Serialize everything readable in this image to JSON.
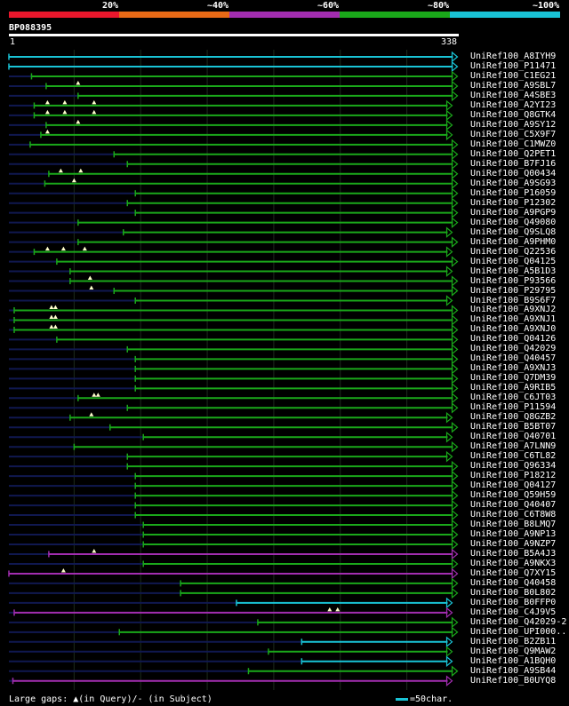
{
  "legend": {
    "segments": [
      {
        "label": "20%",
        "color": "#e8172c"
      },
      {
        "label": "~40%",
        "color": "#e86a16"
      },
      {
        "label": "~60%",
        "color": "#a22db0"
      },
      {
        "label": "~80%",
        "color": "#1aa81a"
      },
      {
        "label": "~100%",
        "color": "#19c3d6"
      }
    ]
  },
  "query": {
    "id": "BP088395",
    "start_label": "1",
    "end_label": "338"
  },
  "chart_data": {
    "type": "alignment-overview",
    "query_length": 338,
    "colors": {
      "green": "#1aa81a",
      "cyan": "#19c3d6",
      "purple": "#a22db0",
      "faint": "#101850",
      "gap": "#ffffcc"
    },
    "hits": [
      {
        "name": "UniRef100_A8IYH9",
        "start": 1,
        "end": 338,
        "color": "cyan",
        "gaps": []
      },
      {
        "name": "UniRef100_P11471",
        "start": 1,
        "end": 338,
        "color": "cyan",
        "gaps": []
      },
      {
        "name": "UniRef100_C1EG21",
        "start": 18,
        "end": 338,
        "color": "green",
        "gaps": []
      },
      {
        "name": "UniRef100_A9SBL7",
        "start": 29,
        "end": 338,
        "color": "green",
        "gaps": [
          53
        ]
      },
      {
        "name": "UniRef100_A4SBE3",
        "start": 53,
        "end": 338,
        "color": "green",
        "gaps": []
      },
      {
        "name": "UniRef100_A2YI23",
        "start": 20,
        "end": 334,
        "color": "green",
        "gaps": [
          30,
          43,
          65
        ]
      },
      {
        "name": "UniRef100_Q8GTK4",
        "start": 20,
        "end": 334,
        "color": "green",
        "gaps": [
          30,
          43,
          65
        ]
      },
      {
        "name": "UniRef100_A9SY12",
        "start": 29,
        "end": 334,
        "color": "green",
        "gaps": [
          53
        ]
      },
      {
        "name": "UniRef100_C5X9F7",
        "start": 25,
        "end": 334,
        "color": "green",
        "gaps": [
          30
        ]
      },
      {
        "name": "UniRef100_C1MWZ0",
        "start": 17,
        "end": 338,
        "color": "green",
        "gaps": []
      },
      {
        "name": "UniRef100_Q2PET1",
        "start": 80,
        "end": 338,
        "color": "green",
        "gaps": []
      },
      {
        "name": "UniRef100_B7FJ16",
        "start": 90,
        "end": 338,
        "color": "green",
        "gaps": []
      },
      {
        "name": "UniRef100_Q00434",
        "start": 31,
        "end": 338,
        "color": "green",
        "gaps": [
          40,
          55
        ]
      },
      {
        "name": "UniRef100_A9SG93",
        "start": 28,
        "end": 338,
        "color": "green",
        "gaps": [
          50
        ]
      },
      {
        "name": "UniRef100_P16059",
        "start": 96,
        "end": 338,
        "color": "green",
        "gaps": []
      },
      {
        "name": "UniRef100_P12302",
        "start": 90,
        "end": 338,
        "color": "green",
        "gaps": []
      },
      {
        "name": "UniRef100_A9PGP9",
        "start": 96,
        "end": 338,
        "color": "green",
        "gaps": []
      },
      {
        "name": "UniRef100_Q49080",
        "start": 53,
        "end": 338,
        "color": "green",
        "gaps": []
      },
      {
        "name": "UniRef100_Q9SLQ8",
        "start": 87,
        "end": 334,
        "color": "green",
        "gaps": []
      },
      {
        "name": "UniRef100_A9PHM0",
        "start": 53,
        "end": 338,
        "color": "green",
        "gaps": []
      },
      {
        "name": "UniRef100_Q22536",
        "start": 20,
        "end": 334,
        "color": "green",
        "gaps": [
          30,
          42,
          58
        ]
      },
      {
        "name": "UniRef100_Q04125",
        "start": 37,
        "end": 338,
        "color": "green",
        "gaps": []
      },
      {
        "name": "UniRef100_A5B1D3",
        "start": 47,
        "end": 334,
        "color": "green",
        "gaps": []
      },
      {
        "name": "UniRef100_P93566",
        "start": 47,
        "end": 338,
        "color": "green",
        "gaps": [
          62
        ]
      },
      {
        "name": "UniRef100_P29795",
        "start": 80,
        "end": 338,
        "color": "green",
        "gaps": [
          63
        ]
      },
      {
        "name": "UniRef100_B9S6F7",
        "start": 96,
        "end": 334,
        "color": "green",
        "gaps": []
      },
      {
        "name": "UniRef100_A9XNJ2",
        "start": 5,
        "end": 338,
        "color": "green",
        "gaps": [
          33,
          36
        ]
      },
      {
        "name": "UniRef100_A9XNJ1",
        "start": 5,
        "end": 338,
        "color": "green",
        "gaps": [
          33,
          36
        ]
      },
      {
        "name": "UniRef100_A9XNJ0",
        "start": 5,
        "end": 338,
        "color": "green",
        "gaps": [
          33,
          36
        ]
      },
      {
        "name": "UniRef100_Q04126",
        "start": 37,
        "end": 338,
        "color": "green",
        "gaps": []
      },
      {
        "name": "UniRef100_Q42029",
        "start": 90,
        "end": 338,
        "color": "green",
        "gaps": []
      },
      {
        "name": "UniRef100_Q40457",
        "start": 96,
        "end": 338,
        "color": "green",
        "gaps": []
      },
      {
        "name": "UniRef100_A9XNJ3",
        "start": 96,
        "end": 338,
        "color": "green",
        "gaps": []
      },
      {
        "name": "UniRef100_Q7DM39",
        "start": 96,
        "end": 338,
        "color": "green",
        "gaps": []
      },
      {
        "name": "UniRef100_A9RIB5",
        "start": 96,
        "end": 338,
        "color": "green",
        "gaps": []
      },
      {
        "name": "UniRef100_C6JT03",
        "start": 53,
        "end": 338,
        "color": "green",
        "gaps": [
          65,
          68
        ]
      },
      {
        "name": "UniRef100_P11594",
        "start": 90,
        "end": 338,
        "color": "green",
        "gaps": []
      },
      {
        "name": "UniRef100_Q8GZB2",
        "start": 47,
        "end": 334,
        "color": "green",
        "gaps": [
          63
        ]
      },
      {
        "name": "UniRef100_B5BT07",
        "start": 77,
        "end": 338,
        "color": "green",
        "gaps": []
      },
      {
        "name": "UniRef100_Q40701",
        "start": 102,
        "end": 334,
        "color": "green",
        "gaps": []
      },
      {
        "name": "UniRef100_A7LNN9",
        "start": 50,
        "end": 338,
        "color": "green",
        "gaps": []
      },
      {
        "name": "UniRef100_C6TL82",
        "start": 90,
        "end": 334,
        "color": "green",
        "gaps": []
      },
      {
        "name": "UniRef100_Q96334",
        "start": 90,
        "end": 338,
        "color": "green",
        "gaps": []
      },
      {
        "name": "UniRef100_P18212",
        "start": 96,
        "end": 338,
        "color": "green",
        "gaps": []
      },
      {
        "name": "UniRef100_Q04127",
        "start": 96,
        "end": 338,
        "color": "green",
        "gaps": []
      },
      {
        "name": "UniRef100_Q59H59",
        "start": 96,
        "end": 338,
        "color": "green",
        "gaps": []
      },
      {
        "name": "UniRef100_Q40407",
        "start": 96,
        "end": 338,
        "color": "green",
        "gaps": []
      },
      {
        "name": "UniRef100_C6T8W8",
        "start": 96,
        "end": 338,
        "color": "green",
        "gaps": []
      },
      {
        "name": "UniRef100_B8LMQ7",
        "start": 102,
        "end": 338,
        "color": "green",
        "gaps": []
      },
      {
        "name": "UniRef100_A9NP13",
        "start": 102,
        "end": 338,
        "color": "green",
        "gaps": []
      },
      {
        "name": "UniRef100_A9NZP7",
        "start": 102,
        "end": 338,
        "color": "green",
        "gaps": []
      },
      {
        "name": "UniRef100_B5A4J3",
        "start": 31,
        "end": 338,
        "color": "purple",
        "gaps": [
          65
        ]
      },
      {
        "name": "UniRef100_A9NKX3",
        "start": 102,
        "end": 338,
        "color": "green",
        "gaps": []
      },
      {
        "name": "UniRef100_Q7XY15",
        "start": 1,
        "end": 338,
        "color": "purple",
        "gaps": [
          42
        ]
      },
      {
        "name": "UniRef100_Q40458",
        "start": 130,
        "end": 338,
        "color": "green",
        "gaps": []
      },
      {
        "name": "UniRef100_B0L802",
        "start": 130,
        "end": 338,
        "color": "green",
        "gaps": []
      },
      {
        "name": "UniRef100_B0FFP0",
        "start": 172,
        "end": 334,
        "color": "cyan",
        "gaps": []
      },
      {
        "name": "UniRef100_C4J9V5",
        "start": 5,
        "end": 334,
        "color": "purple",
        "gaps": [
          242,
          248
        ]
      },
      {
        "name": "UniRef100_Q42029-2",
        "start": 188,
        "end": 338,
        "color": "green",
        "gaps": []
      },
      {
        "name": "UniRef100_UPI000..",
        "start": 84,
        "end": 338,
        "color": "green",
        "gaps": []
      },
      {
        "name": "UniRef100_B2ZB11",
        "start": 221,
        "end": 334,
        "color": "cyan",
        "gaps": []
      },
      {
        "name": "UniRef100_Q9MAW2",
        "start": 196,
        "end": 334,
        "color": "green",
        "gaps": []
      },
      {
        "name": "UniRef100_A1BQH0",
        "start": 221,
        "end": 334,
        "color": "cyan",
        "gaps": []
      },
      {
        "name": "UniRef100_A9SB44",
        "start": 181,
        "end": 338,
        "color": "green",
        "gaps": []
      },
      {
        "name": "UniRef100_B0UYQ8",
        "start": 4,
        "end": 334,
        "color": "purple",
        "gaps": []
      }
    ]
  },
  "footer": {
    "text": "Large gaps: ▲(in Query)/- (in Subject)",
    "scale_text": "=50char."
  }
}
